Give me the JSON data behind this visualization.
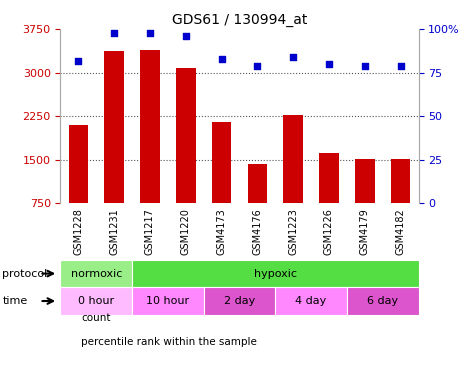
{
  "title": "GDS61 / 130994_at",
  "samples": [
    "GSM1228",
    "GSM1231",
    "GSM1217",
    "GSM1220",
    "GSM4173",
    "GSM4176",
    "GSM1223",
    "GSM1226",
    "GSM4179",
    "GSM4182"
  ],
  "counts": [
    2100,
    3380,
    3400,
    3080,
    2150,
    1420,
    2270,
    1620,
    1510,
    1510
  ],
  "percentiles": [
    82,
    98,
    98,
    96,
    83,
    79,
    84,
    80,
    79,
    79
  ],
  "ylim_left": [
    750,
    3750
  ],
  "ylim_right": [
    0,
    100
  ],
  "yticks_left": [
    750,
    1500,
    2250,
    3000,
    3750
  ],
  "yticks_right": [
    0,
    25,
    50,
    75,
    100
  ],
  "grid_yticks": [
    1500,
    2250,
    3000
  ],
  "bar_color": "#cc0000",
  "dot_color": "#0000cc",
  "grid_color": "#555555",
  "protocol_groups": [
    {
      "label": "normoxic",
      "start": 0,
      "end": 2,
      "color": "#99ee88"
    },
    {
      "label": "hypoxic",
      "start": 2,
      "end": 10,
      "color": "#55dd44"
    }
  ],
  "time_groups": [
    {
      "label": "0 hour",
      "start": 0,
      "end": 2,
      "color": "#ffbbff"
    },
    {
      "label": "10 hour",
      "start": 2,
      "end": 4,
      "color": "#ff88ff"
    },
    {
      "label": "2 day",
      "start": 4,
      "end": 6,
      "color": "#dd55cc"
    },
    {
      "label": "4 day",
      "start": 6,
      "end": 8,
      "color": "#ff88ff"
    },
    {
      "label": "6 day",
      "start": 8,
      "end": 10,
      "color": "#dd55cc"
    }
  ],
  "legend_items": [
    {
      "label": "count",
      "color": "#cc0000"
    },
    {
      "label": "percentile rank within the sample",
      "color": "#0000cc"
    }
  ],
  "left_axis_color": "#cc0000",
  "right_axis_color": "#0000cc",
  "bg_color": "#ffffff",
  "plot_bg": "#ffffff",
  "xtick_bg": "#cccccc",
  "sample_fontsize": 7,
  "title_fontsize": 10,
  "axis_fontsize": 8,
  "row_fontsize": 8
}
